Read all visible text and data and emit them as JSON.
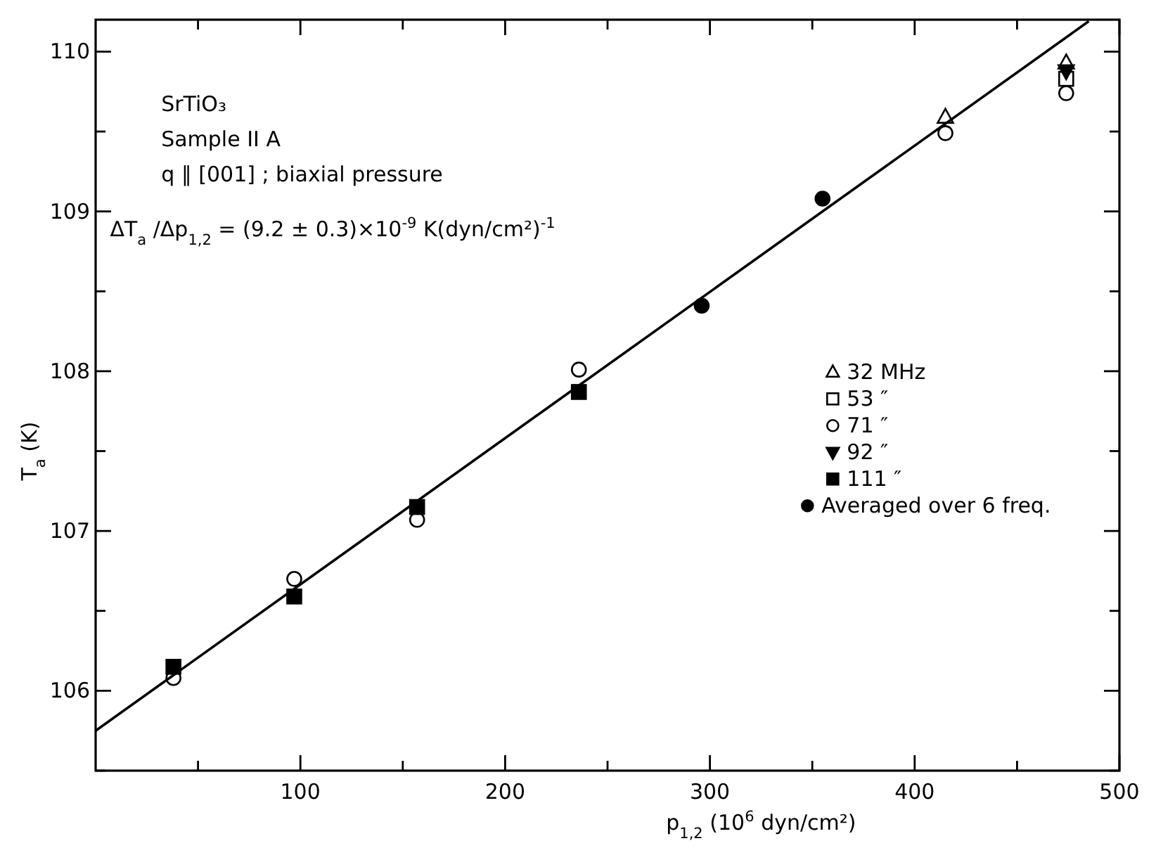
{
  "chart_data": {
    "type": "scatter",
    "xlabel": "p$_{1,2}$  (10$^{6}$ dyn/cm²)",
    "ylabel": "T$_{a}$   (K)",
    "annotations": [
      "SrTiO₃",
      "Sample II A",
      "q ∥ [001]  ; biaxial pressure",
      "ΔT$_{a}$/Δp$_{1,2}$ = (9.2 ± 0.3)×10$^{-9}$  K(dyn/cm²)$^{-1}$"
    ],
    "xlim": [
      0,
      500
    ],
    "ylim": [
      105.5,
      110.2
    ],
    "xticks": [
      {
        "value": 50,
        "label": null
      },
      100,
      {
        "value": 150,
        "label": null
      },
      200,
      {
        "value": 250,
        "label": null
      },
      300,
      {
        "value": 350,
        "label": null
      },
      400,
      {
        "value": 450,
        "label": null
      },
      500
    ],
    "yticks": [
      {
        "value": 105.5,
        "label": null
      },
      106,
      {
        "value": 106.5,
        "label": null
      },
      107,
      {
        "value": 107.5,
        "label": null
      },
      108,
      {
        "value": 108.5,
        "label": null
      },
      109,
      {
        "value": 109.5,
        "label": null
      },
      110
    ],
    "grid": false,
    "legend": "right",
    "series": [
      {
        "name": "32  MHz",
        "color": "#000000",
        "marker": "triangle-open",
        "x": [
          415,
          474
        ],
        "values": [
          109.59,
          109.93
        ]
      },
      {
        "name": "53  ″",
        "color": "#000000",
        "marker": "square-open",
        "x": [
          474
        ],
        "values": [
          109.83
        ]
      },
      {
        "name": "71  ″",
        "color": "#000000",
        "marker": "circle-open",
        "x": [
          38,
          97,
          157,
          236,
          415,
          474
        ],
        "values": [
          106.08,
          106.7,
          107.07,
          108.01,
          109.49,
          109.74
        ]
      },
      {
        "name": "92  ″",
        "color": "#000000",
        "marker": "triangle-down",
        "x": [
          474
        ],
        "values": [
          109.88
        ]
      },
      {
        "name": "111  ″",
        "color": "#000000",
        "marker": "square",
        "x": [
          38,
          97,
          157,
          236
        ],
        "values": [
          106.15,
          106.59,
          107.15,
          107.87
        ]
      },
      {
        "name": "Averaged over 6 freq.",
        "color": "#000000",
        "marker": "circle",
        "x": [
          296,
          355
        ],
        "values": [
          108.41,
          109.08
        ]
      },
      {
        "type": "line",
        "color": "#000000",
        "marker": "none",
        "line_style": "solid",
        "x": [
          0,
          485
        ],
        "values": [
          105.75,
          110.19
        ]
      }
    ]
  }
}
